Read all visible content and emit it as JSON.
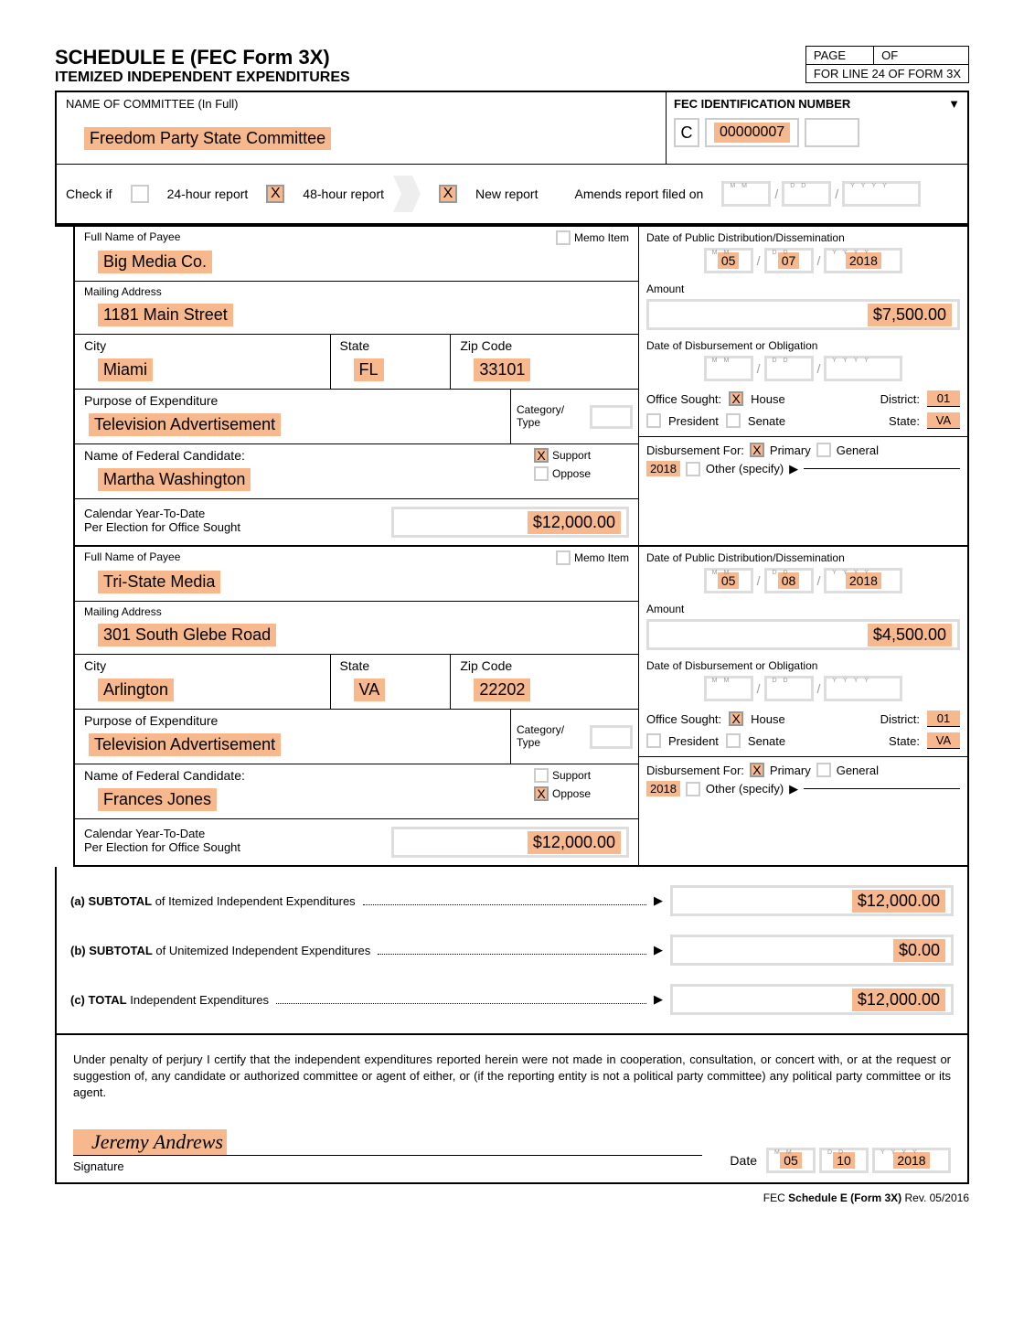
{
  "header": {
    "title": "SCHEDULE E   (FEC Form 3X)",
    "subtitle": "ITEMIZED INDEPENDENT EXPENDITURES",
    "page_label": "PAGE",
    "of_label": "OF",
    "line24": "FOR LINE 24 OF FORM 3X"
  },
  "committee": {
    "label": "NAME OF COMMITTEE (In Full)",
    "name": "Freedom Party State Committee",
    "fec_label": "FEC IDENTIFICATION NUMBER",
    "fec_prefix": "C",
    "fec_number": "00000007"
  },
  "checks": {
    "check_if": "Check if",
    "r24": "24-hour report",
    "r48": "48-hour report",
    "new_report": "New report",
    "amends": "Amends report filed on"
  },
  "payees": [
    {
      "name_label": "Full Name of Payee",
      "memo_label": "Memo Item",
      "name": "Big Media Co.",
      "addr_label": "Mailing Address",
      "address": "1181 Main Street",
      "city_label": "City",
      "city": "Miami",
      "state_label": "State",
      "state": "FL",
      "zip_label": "Zip Code",
      "zip": "33101",
      "purpose_label": "Purpose of Expenditure",
      "purpose": "Television Advertisement",
      "cat_label": "Category/ Type",
      "cand_label": "Name of Federal Candidate:",
      "candidate": "Martha Washington",
      "support": "Support",
      "oppose": "Oppose",
      "support_checked": true,
      "ytd_label1": "Calendar Year-To-Date",
      "ytd_label2": "Per Election for Office Sought",
      "ytd": "$12,000.00",
      "dist_label": "Date of Public Distribution/Dissemination",
      "dist_mm": "05",
      "dist_dd": "07",
      "dist_yy": "2018",
      "amount_label": "Amount",
      "amount": "$7,500.00",
      "disb_label": "Date of Disbursement or Obligation",
      "office_label": "Office Sought:",
      "house": "House",
      "president": "President",
      "senate": "Senate",
      "district_label": "District:",
      "district": "01",
      "state_label2": "State:",
      "state2": "VA",
      "df_label": "Disbursement For:",
      "primary": "Primary",
      "general": "General",
      "df_year": "2018",
      "other_label": "Other (specify)"
    },
    {
      "name_label": "Full Name of Payee",
      "memo_label": "Memo Item",
      "name": "Tri-State Media",
      "addr_label": "Mailing Address",
      "address": "301 South Glebe Road",
      "city_label": "City",
      "city": "Arlington",
      "state_label": "State",
      "state": "VA",
      "zip_label": "Zip Code",
      "zip": "22202",
      "purpose_label": "Purpose of Expenditure",
      "purpose": "Television Advertisement",
      "cat_label": "Category/ Type",
      "cand_label": "Name of Federal Candidate:",
      "candidate": "Frances Jones",
      "support": "Support",
      "oppose": "Oppose",
      "support_checked": false,
      "ytd_label1": "Calendar Year-To-Date",
      "ytd_label2": "Per Election for Office Sought",
      "ytd": "$12,000.00",
      "dist_label": "Date of Public Distribution/Dissemination",
      "dist_mm": "05",
      "dist_dd": "08",
      "dist_yy": "2018",
      "amount_label": "Amount",
      "amount": "$4,500.00",
      "disb_label": "Date of Disbursement or Obligation",
      "office_label": "Office Sought:",
      "house": "House",
      "president": "President",
      "senate": "Senate",
      "district_label": "District:",
      "district": "01",
      "state_label2": "State:",
      "state2": "VA",
      "df_label": "Disbursement For:",
      "primary": "Primary",
      "general": "General",
      "df_year": "2018",
      "other_label": "Other (specify)"
    }
  ],
  "totals": {
    "a_label_bold": "(a) SUBTOTAL",
    "a_label_rest": " of Itemized Independent Expenditures",
    "b_label_bold": "(b) SUBTOTAL",
    "b_label_rest": " of Unitemized Independent Expenditures",
    "c_label_bold": "(c) TOTAL",
    "c_label_rest": " Independent Expenditures",
    "a_value": "$12,000.00",
    "b_value": "$0.00",
    "c_value": "$12,000.00"
  },
  "cert": {
    "text": "Under penalty of perjury I certify that the independent expenditures reported herein were not made in cooperation, consultation, or concert with, or at the request or suggestion of, any candidate or authorized committee or agent of either, or (if the reporting entity is not a political party committee) any political party committee or its agent.",
    "sig_name": "Jeremy Andrews",
    "sig_label": "Signature",
    "date_label": "Date",
    "mm": "05",
    "dd": "10",
    "yy": "2018"
  },
  "footer": {
    "text_pre": "FEC ",
    "text_bold": "Schedule E (Form 3X)",
    "text_post": " Rev. 05/2016"
  }
}
